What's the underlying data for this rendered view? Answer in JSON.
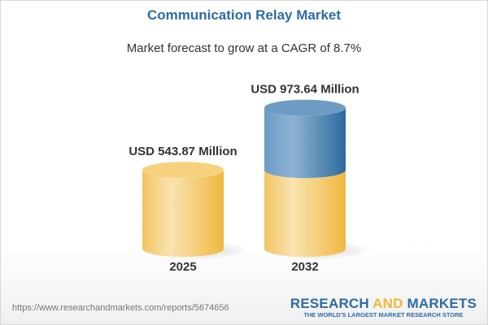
{
  "chart_data": {
    "type": "bar",
    "style": "3d-cylinder",
    "title": "Communication Relay Market",
    "subtitle": "Market forecast to grow at a CAGR of 8.7%",
    "categories": [
      "2025",
      "2032"
    ],
    "values": [
      543.87,
      973.64
    ],
    "data_labels": [
      "USD 543.87 Million",
      "USD 973.64 Million"
    ],
    "unit": "USD Million",
    "colors": {
      "base": "#f3c45e",
      "growth": "#4a82b4",
      "title": "#2e6ca4"
    }
  },
  "footer": {
    "url": "https://www.researchandmarkets.com/reports/5674656",
    "logo_part1": "RESEARCH ",
    "logo_part2": "AND",
    "logo_part3": " MARKETS",
    "logo_tagline": "THE WORLD'S LARGEST MARKET RESEARCH STORE"
  }
}
